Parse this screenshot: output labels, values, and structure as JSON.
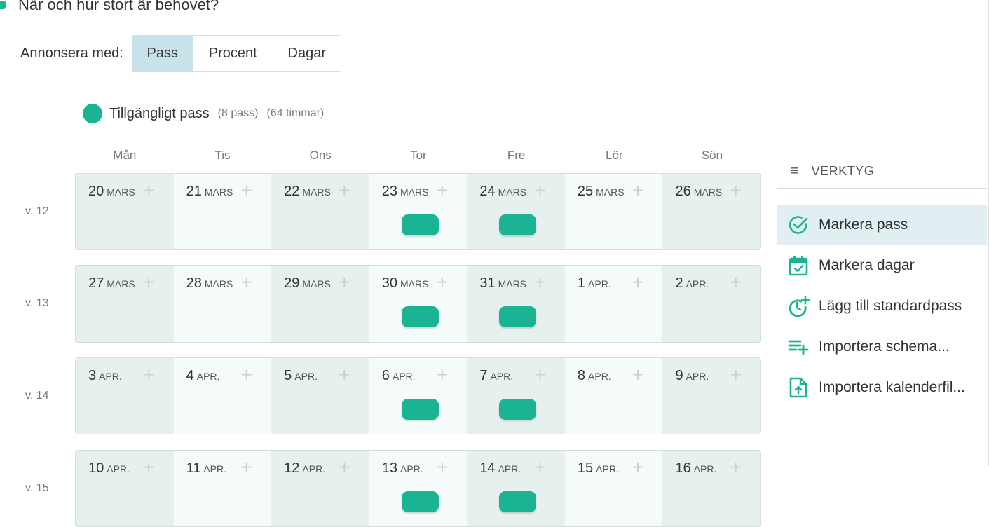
{
  "page": {
    "title": "När och hur stort är behovet?"
  },
  "announce": {
    "label": "Annonsera med:",
    "options": [
      "Pass",
      "Procent",
      "Dagar"
    ],
    "selected": "Pass"
  },
  "legend": {
    "label": "Tillgängligt pass",
    "count": "(8 pass)",
    "hours": "(64 timmar)"
  },
  "days": [
    "Mån",
    "Tis",
    "Ons",
    "Tor",
    "Fre",
    "Lör",
    "Sön"
  ],
  "weeks": [
    {
      "label": "v. 12",
      "dates": [
        {
          "num": "20",
          "mon": "MARS"
        },
        {
          "num": "21",
          "mon": "MARS"
        },
        {
          "num": "22",
          "mon": "MARS"
        },
        {
          "num": "23",
          "mon": "MARS",
          "shift": true
        },
        {
          "num": "24",
          "mon": "MARS",
          "shift": true
        },
        {
          "num": "25",
          "mon": "MARS"
        },
        {
          "num": "26",
          "mon": "MARS"
        }
      ]
    },
    {
      "label": "v. 13",
      "dates": [
        {
          "num": "27",
          "mon": "MARS"
        },
        {
          "num": "28",
          "mon": "MARS"
        },
        {
          "num": "29",
          "mon": "MARS"
        },
        {
          "num": "30",
          "mon": "MARS",
          "shift": true
        },
        {
          "num": "31",
          "mon": "MARS",
          "shift": true
        },
        {
          "num": "1",
          "mon": "APR."
        },
        {
          "num": "2",
          "mon": "APR."
        }
      ]
    },
    {
      "label": "v. 14",
      "dates": [
        {
          "num": "3",
          "mon": "APR."
        },
        {
          "num": "4",
          "mon": "APR."
        },
        {
          "num": "5",
          "mon": "APR."
        },
        {
          "num": "6",
          "mon": "APR.",
          "shift": true
        },
        {
          "num": "7",
          "mon": "APR.",
          "shift": true
        },
        {
          "num": "8",
          "mon": "APR."
        },
        {
          "num": "9",
          "mon": "APR."
        }
      ]
    },
    {
      "label": "v. 15",
      "dates": [
        {
          "num": "10",
          "mon": "APR."
        },
        {
          "num": "11",
          "mon": "APR."
        },
        {
          "num": "12",
          "mon": "APR."
        },
        {
          "num": "13",
          "mon": "APR.",
          "shift": true
        },
        {
          "num": "14",
          "mon": "APR.",
          "shift": true
        },
        {
          "num": "15",
          "mon": "APR."
        },
        {
          "num": "16",
          "mon": "APR."
        }
      ]
    }
  ],
  "tools": {
    "title": "VERKTYG",
    "items": [
      {
        "label": "Markera pass",
        "icon": "check-circle-icon",
        "active": true
      },
      {
        "label": "Markera dagar",
        "icon": "calendar-check-icon"
      },
      {
        "label": "Lägg till standardpass",
        "icon": "clock-plus-icon"
      },
      {
        "label": "Importera schema...",
        "icon": "list-plus-icon"
      },
      {
        "label": "Importera kalenderfil...",
        "icon": "file-upload-icon"
      }
    ]
  },
  "colors": {
    "accent": "#1ab394",
    "selected_bg": "#c7e2e8",
    "shade": "#e6f0ee"
  }
}
